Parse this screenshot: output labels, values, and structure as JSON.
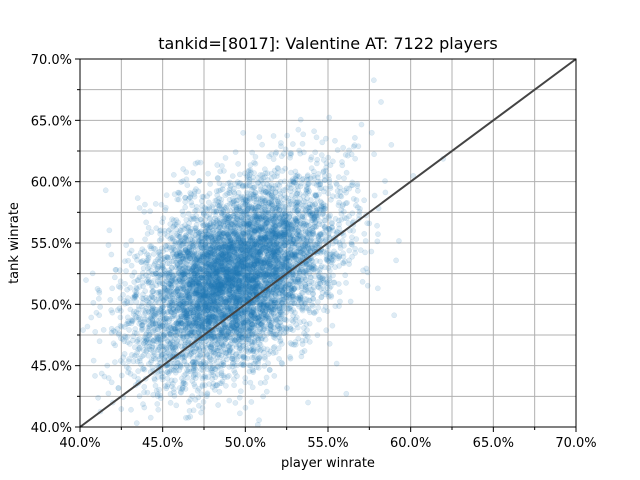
{
  "chart_data": {
    "type": "scatter",
    "title": "tankid=[8017]: Valentine AT: 7122 players",
    "xlabel": "player winrate",
    "ylabel": "tank winrate",
    "xlim": [
      0.4,
      0.7
    ],
    "ylim": [
      0.4,
      0.7
    ],
    "x_major_ticks": [
      0.4,
      0.45,
      0.5,
      0.55,
      0.6,
      0.65,
      0.7
    ],
    "y_major_ticks": [
      0.4,
      0.45,
      0.5,
      0.55,
      0.6,
      0.65,
      0.7
    ],
    "x_tick_labels": [
      "40.0%",
      "45.0%",
      "50.0%",
      "55.0%",
      "60.0%",
      "65.0%",
      "70.0%"
    ],
    "y_tick_labels": [
      "40.0%",
      "45.0%",
      "50.0%",
      "55.0%",
      "60.0%",
      "65.0%",
      "70.0%"
    ],
    "grid": true,
    "grid_minor": true,
    "point_color": "#1f77b4",
    "point_opacity": 0.15,
    "reference_line": {
      "from": [
        0.4,
        0.4
      ],
      "to": [
        0.7,
        0.7
      ],
      "color": "#444444"
    },
    "n_points": 7122,
    "distribution": {
      "x_mean": 0.494,
      "x_std": 0.03,
      "y_mean": 0.522,
      "y_std": 0.04,
      "correlation": 0.45,
      "seed": 8017
    }
  }
}
